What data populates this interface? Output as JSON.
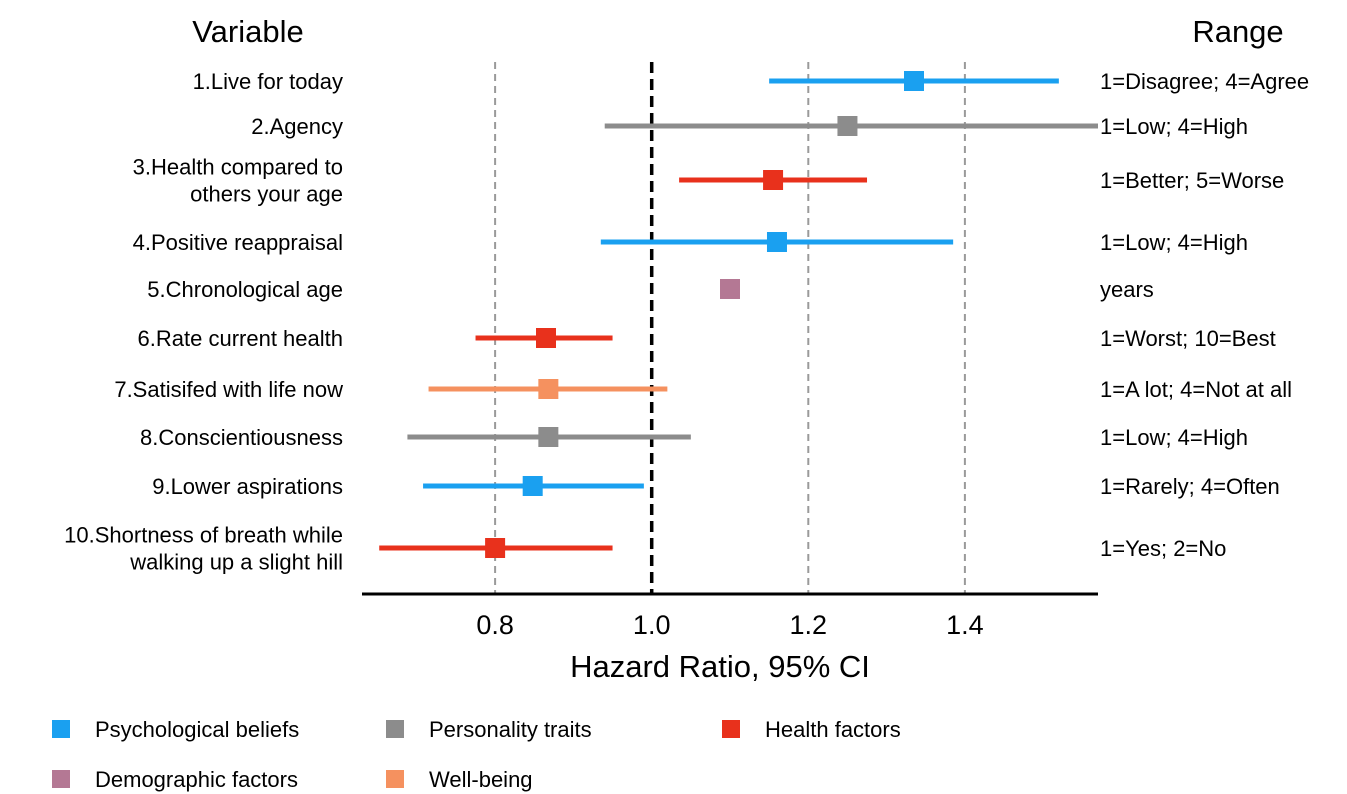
{
  "chart_data": {
    "type": "forest",
    "column_headers": {
      "variable": "Variable",
      "range": "Range"
    },
    "xlabel": "Hazard Ratio, 95% CI",
    "xlim": [
      0.63,
      1.57
    ],
    "xticks": [
      {
        "value": 0.8,
        "label": "0.8"
      },
      {
        "value": 1.0,
        "label": "1.0"
      },
      {
        "value": 1.2,
        "label": "1.2"
      },
      {
        "value": 1.4,
        "label": "1.4"
      }
    ],
    "reference_line": 1.0,
    "grid_lines": [
      0.8,
      1.2,
      1.4
    ],
    "categories": [
      {
        "key": "psych",
        "name": "Psychological beliefs",
        "color": "#1aa0f0"
      },
      {
        "key": "personality",
        "name": "Personality traits",
        "color": "#8c8c8c"
      },
      {
        "key": "health",
        "name": "Health factors",
        "color": "#e8311c"
      },
      {
        "key": "demo",
        "name": "Demographic factors",
        "color": "#b47894"
      },
      {
        "key": "wellbeing",
        "name": "Well-being",
        "color": "#f5915f"
      }
    ],
    "rows": [
      {
        "label": [
          "1.Live for today"
        ],
        "range": "1=Disagree; 4=Agree",
        "category": "psych",
        "hr": 1.335,
        "lo": 1.15,
        "hi": 1.52
      },
      {
        "label": [
          "2.Agency"
        ],
        "range": "1=Low; 4=High",
        "category": "personality",
        "hr": 1.25,
        "lo": 0.94,
        "hi": 1.57
      },
      {
        "label": [
          "3.Health compared to",
          "others your age"
        ],
        "range": "1=Better; 5=Worse",
        "category": "health",
        "hr": 1.155,
        "lo": 1.035,
        "hi": 1.275
      },
      {
        "label": [
          "4.Positive reappraisal"
        ],
        "range": "1=Low; 4=High",
        "category": "psych",
        "hr": 1.16,
        "lo": 0.935,
        "hi": 1.385
      },
      {
        "label": [
          "5.Chronological age"
        ],
        "range": "years",
        "category": "demo",
        "hr": 1.1,
        "lo": 1.09,
        "hi": 1.11
      },
      {
        "label": [
          "6.Rate current health"
        ],
        "range": "1=Worst; 10=Best",
        "category": "health",
        "hr": 0.865,
        "lo": 0.775,
        "hi": 0.95
      },
      {
        "label": [
          "7.Satisifed with life now"
        ],
        "range": "1=A lot; 4=Not at all",
        "category": "wellbeing",
        "hr": 0.868,
        "lo": 0.715,
        "hi": 1.02
      },
      {
        "label": [
          "8.Conscientiousness"
        ],
        "range": "1=Low; 4=High",
        "category": "personality",
        "hr": 0.868,
        "lo": 0.688,
        "hi": 1.05
      },
      {
        "label": [
          "9.Lower aspirations"
        ],
        "range": "1=Rarely; 4=Often",
        "category": "psych",
        "hr": 0.848,
        "lo": 0.708,
        "hi": 0.99
      },
      {
        "label": [
          "10.Shortness of breath while",
          "walking up a slight hill"
        ],
        "range": "1=Yes; 2=No",
        "category": "health",
        "hr": 0.8,
        "lo": 0.652,
        "hi": 0.95
      }
    ],
    "legend": {
      "position": "bottom-left"
    }
  }
}
